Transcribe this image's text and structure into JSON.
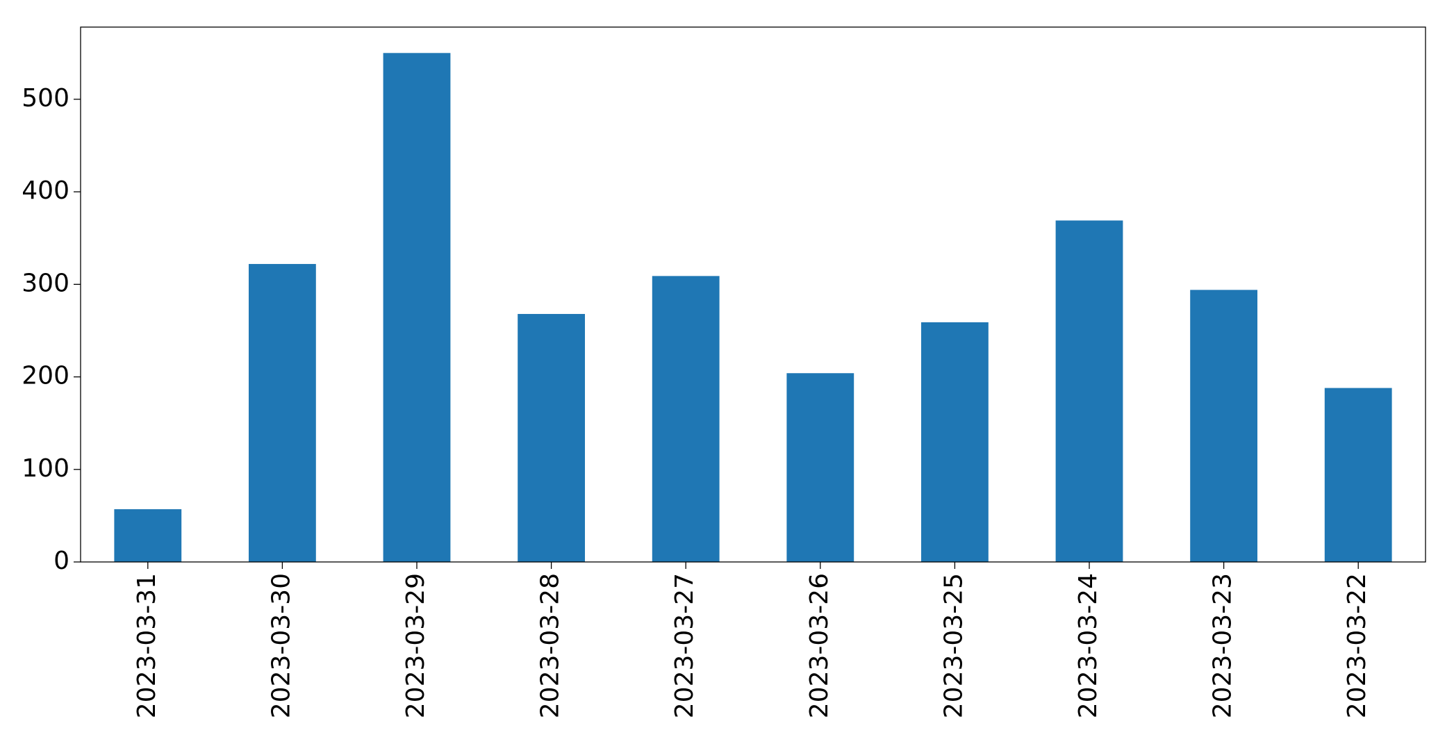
{
  "chart_data": {
    "type": "bar",
    "categories": [
      "2023-03-31",
      "2023-03-30",
      "2023-03-29",
      "2023-03-28",
      "2023-03-27",
      "2023-03-26",
      "2023-03-25",
      "2023-03-24",
      "2023-03-23",
      "2023-03-22"
    ],
    "values": [
      57,
      322,
      550,
      268,
      309,
      204,
      259,
      369,
      294,
      188
    ],
    "color": "#1f77b4",
    "ylim": [
      0,
      578
    ],
    "yticks": [
      0,
      100,
      200,
      300,
      400,
      500
    ],
    "grid": false
  }
}
